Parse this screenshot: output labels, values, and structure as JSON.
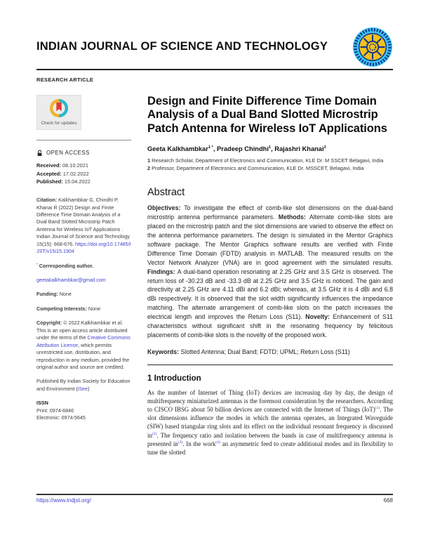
{
  "journal": {
    "name": "INDIAN JOURNAL OF SCIENCE AND TECHNOLOGY",
    "article_type": "RESEARCH ARTICLE"
  },
  "sidebar": {
    "check_updates": "Check for updates",
    "open_access": "OPEN ACCESS",
    "dates": [
      {
        "label": "Received:",
        "value": "08.10.2021"
      },
      {
        "label": "Accepted:",
        "value": "17.02.2022"
      },
      {
        "label": "Published:",
        "value": "15.04.2022"
      }
    ],
    "citation": [
      {
        "t": "Citation: ",
        "b": true
      },
      {
        "t": "Kalkhambkar G, Chindhi P, Khanai R (2022) Design and Finite Difference Time Domain Analysis of a Dual Band Slotted Microstrip Patch Antenna for Wireless IoT Applications .  Indian Journal of Science and Technology 15(15): 668-676. "
      },
      {
        "t": "https://doi.org/10.17485/IJST/v15i15.1904",
        "link": true,
        "n": "doi-link"
      }
    ],
    "corresponding": [
      {
        "t": "*",
        "sup": true
      },
      {
        "t": " Corresponding author.",
        "b": true
      }
    ],
    "email": [
      {
        "t": "geetakalkhambkar@gmail.com",
        "link": true,
        "n": "email-link"
      }
    ],
    "funding": [
      {
        "t": "Funding: ",
        "b": true
      },
      {
        "t": "None"
      }
    ],
    "competing": [
      {
        "t": "Competing Interests: ",
        "b": true
      },
      {
        "t": "None"
      }
    ],
    "copyright": [
      {
        "t": "Copyright: ",
        "b": true
      },
      {
        "t": "© 2022 Kalkhambkar et al. This is an open access article distributed under the terms of the "
      },
      {
        "t": "Creative Commons Attribution License",
        "link": true,
        "n": "cc-license-link"
      },
      {
        "t": ", which permits unrestricted use, distribution, and reproduction in any medium, provided the original author and source are credited."
      }
    ],
    "published_by": [
      {
        "t": "Published By Indian Society for Education and Environment ("
      },
      {
        "t": "iSee",
        "link": true,
        "n": "isee-link"
      },
      {
        "t": ")"
      }
    ],
    "issn": {
      "heading": "ISSN",
      "print": "Print: 0974-6846",
      "electronic": "Electronic: 0974-5645"
    }
  },
  "main": {
    "title": "Design and Finite Difference Time Domain Analysis of a Dual Band Slotted Microstrip Patch Antenna for Wireless IoT Applications",
    "authors": [
      {
        "t": "Geeta Kalkhambkar"
      },
      {
        "t": "1 *",
        "sup": true
      },
      {
        "t": ", Pradeep Chindhi"
      },
      {
        "t": "1",
        "sup": true
      },
      {
        "t": ", Rajashri Khanai"
      },
      {
        "t": "2",
        "sup": true
      }
    ],
    "affiliations": [
      {
        "t": "1 ",
        "b": true
      },
      {
        "t": "Research Scholar, Department of Electronics and Communication, KLE Dr. M SSCET Belagavi, India",
        "br": true
      },
      {
        "t": "2 ",
        "b": true
      },
      {
        "t": "Professor, Department of Electronics and Communication, KLE Dr. MSSCET, Belagavi, India"
      }
    ],
    "abstract_heading": "Abstract",
    "abstract": [
      {
        "t": "Objectives: ",
        "b": true
      },
      {
        "t": "To investigate the effect of comb-like slot dimensions on the dual-band microstrip antenna performance parameters. "
      },
      {
        "t": "Methods: ",
        "b": true
      },
      {
        "t": "Alternate comb-like slots are placed on the microstrip patch and the slot dimensions are varied to observe the effect on the antenna performance parameters. The design is simulated in the Mentor Graphics software package. The Mentor Graphics software results are verified with Finite Difference Time Domain (FDTD) analysis in MATLAB. The measured results on the Vector Network Analyzer (VNA) are in good agreement with the simulated results. "
      },
      {
        "t": "Findings: ",
        "b": true
      },
      {
        "t": "A dual-band operation resonating at 2.25 GHz and 3.5 GHz is observed. The return loss of -30.23 dB and -33.3 dB at 2.25 GHz and 3.5 GHz is noticed. The gain and directivity at 2.25 GHz are 4.11 dBi and 6.2 dBi; whereas, at 3.5 GHz it is 4 dBi and 6.8 dBi respectively. It is observed that the slot width significantly influences the impedance matching. The alternate arrangement of comb-like slots on the patch increases the electrical length and improves the Return Loss (S11). "
      },
      {
        "t": "Novelty: ",
        "b": true
      },
      {
        "t": "Enhancement of S11 characteristics without significant shift in the resonating frequency by felicitous placements of comb-like slots is the novelty of the proposed work."
      }
    ],
    "keywords": [
      {
        "t": "Keywords: ",
        "b": true
      },
      {
        "t": "Slotted Antenna; Dual Band; FDTD; UPML; Return Loss (S11)"
      }
    ],
    "intro_heading": "1 Introduction",
    "intro": [
      {
        "t": "As the number of Internet of Thing (IoT) devices are increasing day by day, the design of multifrequency miniaturized antennas is the foremost consideration by the researchers. According to CISCO IBSG about 50 billion devices are connected with the Internet of Things (IoT)"
      },
      {
        "t": "(1)",
        "sup": true,
        "link": true,
        "n": "ref-1-link"
      },
      {
        "t": ". The slot dimensions influence the modes in which the antenna operates, an Integrated Waveguide (SIW) based triangular ring slots and its effect on the individual resonant frequency is discussed in"
      },
      {
        "t": "(2)",
        "sup": true,
        "link": true,
        "n": "ref-2-link"
      },
      {
        "t": ". The frequency ratio and isolation between the bands in case of multifrequency antenna is presented in"
      },
      {
        "t": "(3)",
        "sup": true,
        "link": true,
        "n": "ref-3-link"
      },
      {
        "t": ". In the work"
      },
      {
        "t": "(4)",
        "sup": true,
        "link": true,
        "n": "ref-4-link"
      },
      {
        "t": " an asymmetric feed to create additional modes and its flexibility to tune the slotted"
      }
    ]
  },
  "footer": {
    "url": "https://www.indjst.org/",
    "page": "668"
  },
  "colors": {
    "link_blue": "#4444cc",
    "logo_cyan": "#3fc6f2",
    "logo_navy": "#14388f",
    "logo_yellow": "#f4c11d",
    "badge_red": "#e23d2e",
    "badge_teal": "#2ab7c9",
    "badge_yellow": "#f2b32a"
  }
}
